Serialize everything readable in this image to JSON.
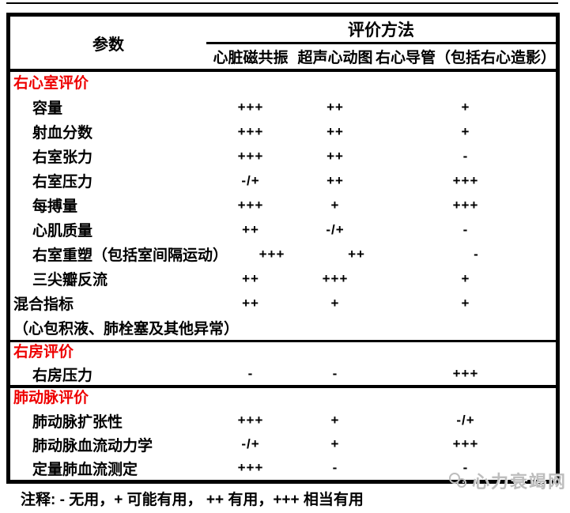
{
  "table": {
    "header": {
      "param_label": "参数",
      "methods_label": "评价方法",
      "method_columns": [
        "心脏磁共振",
        "超声心动图",
        "右心导管（包括右心造影）"
      ]
    },
    "sections": [
      {
        "title": "右心室评价",
        "rows": [
          {
            "label": "容量",
            "indent": 1,
            "values": [
              "+++",
              "++",
              "+"
            ]
          },
          {
            "label": "射血分数",
            "indent": 1,
            "values": [
              "+++",
              "++",
              "+"
            ]
          },
          {
            "label": "右室张力",
            "indent": 1,
            "values": [
              "+++",
              "++",
              "-"
            ]
          },
          {
            "label": "右室压力",
            "indent": 1,
            "values": [
              "-/+",
              "++",
              "+++"
            ]
          },
          {
            "label": "每搏量",
            "indent": 1,
            "values": [
              "+++",
              "+",
              "+++"
            ]
          },
          {
            "label": "心肌质量",
            "indent": 1,
            "values": [
              "++",
              "-/+",
              "-"
            ]
          },
          {
            "label": "右室重塑（包括室间隔运动）",
            "indent": 1,
            "values": [
              "+++",
              "++",
              "-"
            ]
          },
          {
            "label": "三尖瓣反流",
            "indent": 1,
            "values": [
              "++",
              "+++",
              "+"
            ]
          },
          {
            "label": "混合指标",
            "indent": 0,
            "values": [
              "++",
              "+",
              "+"
            ]
          },
          {
            "label": "（心包积液、肺栓塞及其他异常）",
            "indent": 0,
            "values": [
              "",
              "",
              ""
            ]
          }
        ]
      },
      {
        "title": "右房评价",
        "rows": [
          {
            "label": "右房压力",
            "indent": 1,
            "values": [
              "-",
              "-",
              "+++"
            ]
          }
        ]
      },
      {
        "title": "肺动脉评价",
        "rows": [
          {
            "label": "肺动脉扩张性",
            "indent": 1,
            "values": [
              "+++",
              "+",
              "-/+"
            ]
          },
          {
            "label": "肺动脉血流动力学",
            "indent": 1,
            "values": [
              "-/+",
              "+",
              "+++"
            ]
          },
          {
            "label": "定量肺血流测定",
            "indent": 1,
            "values": [
              "+++",
              "-",
              "-"
            ]
          }
        ]
      }
    ],
    "footnote": "注释: - 无用，+ 可能有用， ++ 有用，+++ 相当有用"
  },
  "watermark": {
    "text": "心力衰竭网"
  },
  "colors": {
    "section_title": "#ee0000",
    "text": "#000000",
    "watermark": "#bdbdbd",
    "border": "#000000"
  }
}
